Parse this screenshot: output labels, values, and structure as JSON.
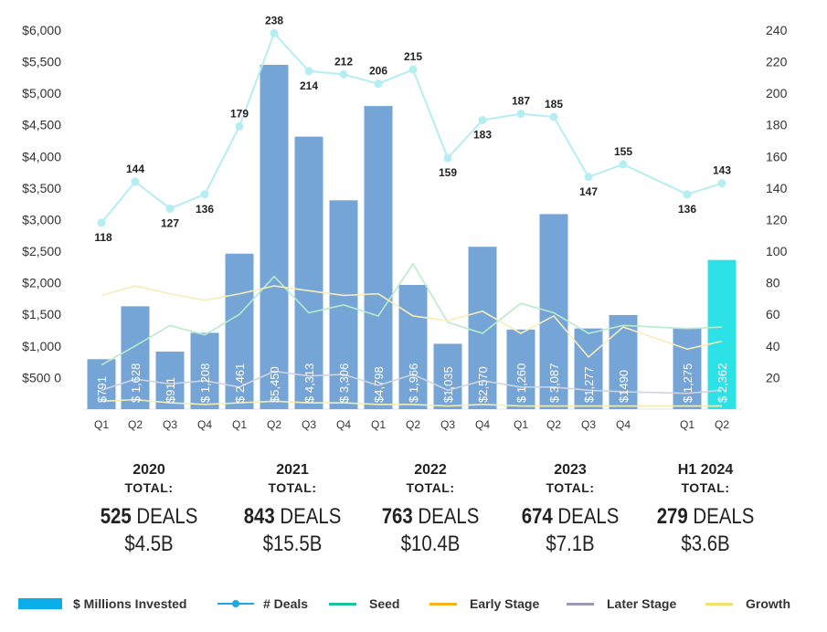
{
  "chart_data": {
    "type": "bar",
    "categories": [
      "Q1",
      "Q2",
      "Q3",
      "Q4",
      "Q1",
      "Q2",
      "Q3",
      "Q4",
      "Q1",
      "Q2",
      "Q3",
      "Q4",
      "Q1",
      "Q2",
      "Q3",
      "Q4",
      "Q1",
      "Q2"
    ],
    "invested_labels": [
      "$791",
      "$ 1,628",
      "$911",
      "$ 1,208",
      "$ 2,461",
      "$5,450",
      "$ 4,313",
      "$ 3,306",
      "$4,798",
      "$ 1,966",
      "$1,035",
      "$2,570",
      "$ 1,260",
      "$ 3,087",
      "$1,277",
      "$1490",
      "$ 1,275",
      "$ 2,362"
    ],
    "series": [
      {
        "name": "$ Millions Invested",
        "axis": "left",
        "values": [
          791,
          1628,
          911,
          1208,
          2461,
          5450,
          4313,
          3306,
          4798,
          1966,
          1035,
          2570,
          1260,
          3087,
          1277,
          1490,
          1275,
          2362
        ]
      },
      {
        "name": "# Deals",
        "axis": "right",
        "values": [
          118,
          144,
          127,
          136,
          179,
          238,
          214,
          212,
          206,
          215,
          159,
          183,
          187,
          185,
          147,
          155,
          136,
          143
        ]
      },
      {
        "name": "Seed",
        "axis": "right",
        "values": [
          28,
          40,
          53,
          47,
          60,
          84,
          61,
          66,
          59,
          92,
          55,
          48,
          67,
          61,
          48,
          53,
          51,
          52
        ]
      },
      {
        "name": "Early Stage",
        "axis": "right",
        "values": [
          72,
          78,
          73,
          69,
          73,
          78,
          75,
          72,
          73,
          59,
          56,
          62,
          48,
          59,
          33,
          52,
          38,
          43
        ]
      },
      {
        "name": "Later Stage",
        "axis": "right",
        "values": [
          12,
          19,
          16,
          18,
          14,
          24,
          21,
          22,
          15,
          22,
          12,
          18,
          14,
          14,
          12,
          11,
          10,
          12
        ]
      },
      {
        "name": "Growth",
        "axis": "right",
        "values": [
          5,
          6,
          4,
          3,
          4,
          5,
          4,
          4,
          3,
          3,
          2,
          3,
          2,
          2,
          2,
          2,
          2,
          2
        ]
      }
    ],
    "left_axis": {
      "ticks": [
        "$500 0",
        "$1,000",
        "$1,500",
        "$2,000",
        "$2,500",
        "$3,000",
        "$3,500",
        "$4,000",
        "$4,500",
        "$5,000",
        "$5,500",
        "$6,000"
      ],
      "ylim": [
        0,
        6100
      ]
    },
    "right_axis": {
      "ticks": [
        "20",
        "40",
        "60",
        "80",
        "100",
        "120",
        "140",
        "160",
        "180",
        "200",
        "220",
        "240"
      ],
      "ylim": [
        0,
        244
      ]
    },
    "bar_color": "#75a5d6",
    "highlight_bar_color": "#2de2e6",
    "line_colors": {
      "# Deals": "#b5eef2",
      "Seed": "#b7ebc9",
      "Early Stage": "#f7edbb",
      "Later Stage": "#d3d3df",
      "Growth": "#f2eeb3"
    },
    "legend_position": "bottom"
  },
  "summaries": [
    {
      "year": "2020",
      "total_label": "TOTAL:",
      "deals_num": "525",
      "deals_word": "DEALS",
      "invested": "$4.5B"
    },
    {
      "year": "2021",
      "total_label": "TOTAL:",
      "deals_num": "843",
      "deals_word": "DEALS",
      "invested": "$15.5B"
    },
    {
      "year": "2022",
      "total_label": "TOTAL:",
      "deals_num": "763",
      "deals_word": "DEALS",
      "invested": "$10.4B"
    },
    {
      "year": "2023",
      "total_label": "TOTAL:",
      "deals_num": "674",
      "deals_word": "DEALS",
      "invested": "$7.1B"
    },
    {
      "year": "H1 2024",
      "total_label": "TOTAL:",
      "deals_num": "279",
      "deals_word": "DEALS",
      "invested": "$3.6B"
    }
  ],
  "legend": [
    {
      "label": "$ Millions Invested",
      "type": "box",
      "color": "#0aaee8"
    },
    {
      "label": "# Deals",
      "type": "dotline",
      "color": "#1ca8e0"
    },
    {
      "label": "Seed",
      "type": "line",
      "color": "#1cc49a"
    },
    {
      "label": "Early Stage",
      "type": "line",
      "color": "#f2b31b"
    },
    {
      "label": "Later Stage",
      "type": "line",
      "color": "#9a9ab8"
    },
    {
      "label": "Growth",
      "type": "line",
      "color": "#f0e070"
    }
  ]
}
